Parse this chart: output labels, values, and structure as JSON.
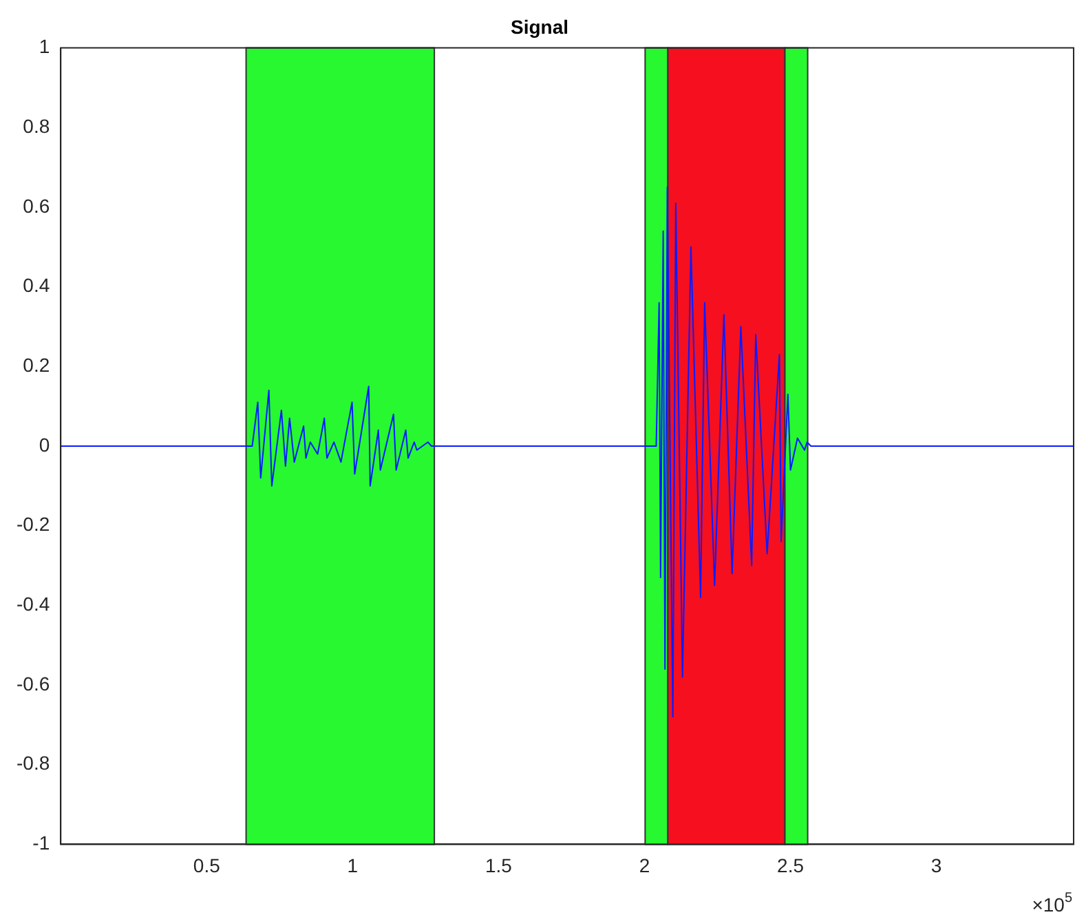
{
  "chart_data": {
    "type": "line",
    "title": "Signal",
    "annotations": [
      "×10$^{5}$"
    ],
    "xlim": [
      0,
      3.47
    ],
    "xticks": [
      0.5,
      1,
      1.5,
      2,
      2.5,
      3
    ],
    "ylim": [
      -1,
      1
    ],
    "yticks": [
      -1,
      -0.8,
      -0.6,
      -0.4,
      -0.2,
      0,
      0.2,
      0.4,
      0.6,
      0.8,
      1
    ],
    "grid": false,
    "legend": false,
    "marker": "none",
    "line_style": "solid",
    "bands": [
      {
        "axis": "x",
        "from": 0.635,
        "to": 1.28,
        "color": "#27f830"
      },
      {
        "axis": "x",
        "from": 2.002,
        "to": 2.08,
        "color": "#27f830"
      },
      {
        "axis": "x",
        "from": 2.08,
        "to": 2.481,
        "color": "#f50f1f"
      },
      {
        "axis": "x",
        "from": 2.481,
        "to": 2.559,
        "color": "#27f830"
      }
    ],
    "series": [
      {
        "color": "#0a1bff",
        "x": [
          0,
          0.656,
          0.675,
          0.685,
          0.713,
          0.723,
          0.756,
          0.77,
          0.784,
          0.8,
          0.832,
          0.84,
          0.855,
          0.88,
          0.903,
          0.912,
          0.936,
          0.96,
          0.998,
          1.007,
          1.055,
          1.06,
          1.088,
          1.095,
          1.14,
          1.149,
          1.182,
          1.19,
          1.211,
          1.22,
          1.258,
          1.27,
          2.04,
          2.05,
          2.055,
          2.064,
          2.07,
          2.078,
          2.097,
          2.107,
          2.13,
          2.159,
          2.192,
          2.206,
          2.24,
          2.272,
          2.3,
          2.33,
          2.367,
          2.381,
          2.42,
          2.462,
          2.468,
          2.491,
          2.5,
          2.524,
          2.548,
          2.557,
          2.57,
          3.47
        ],
        "values": [
          0,
          0,
          0.11,
          -0.08,
          0.14,
          -0.1,
          0.09,
          -0.05,
          0.07,
          -0.04,
          0.05,
          -0.03,
          0.01,
          -0.02,
          0.07,
          -0.03,
          0.01,
          -0.04,
          0.11,
          -0.07,
          0.15,
          -0.1,
          0.04,
          -0.06,
          0.08,
          -0.06,
          0.04,
          -0.03,
          0.01,
          -0.01,
          0.01,
          0,
          0,
          0.36,
          -0.33,
          0.54,
          -0.56,
          0.65,
          -0.68,
          0.61,
          -0.58,
          0.5,
          -0.38,
          0.36,
          -0.35,
          0.33,
          -0.32,
          0.3,
          -0.3,
          0.28,
          -0.27,
          0.23,
          -0.24,
          0.13,
          -0.06,
          0.02,
          -0.01,
          0.01,
          0,
          0
        ]
      }
    ]
  }
}
